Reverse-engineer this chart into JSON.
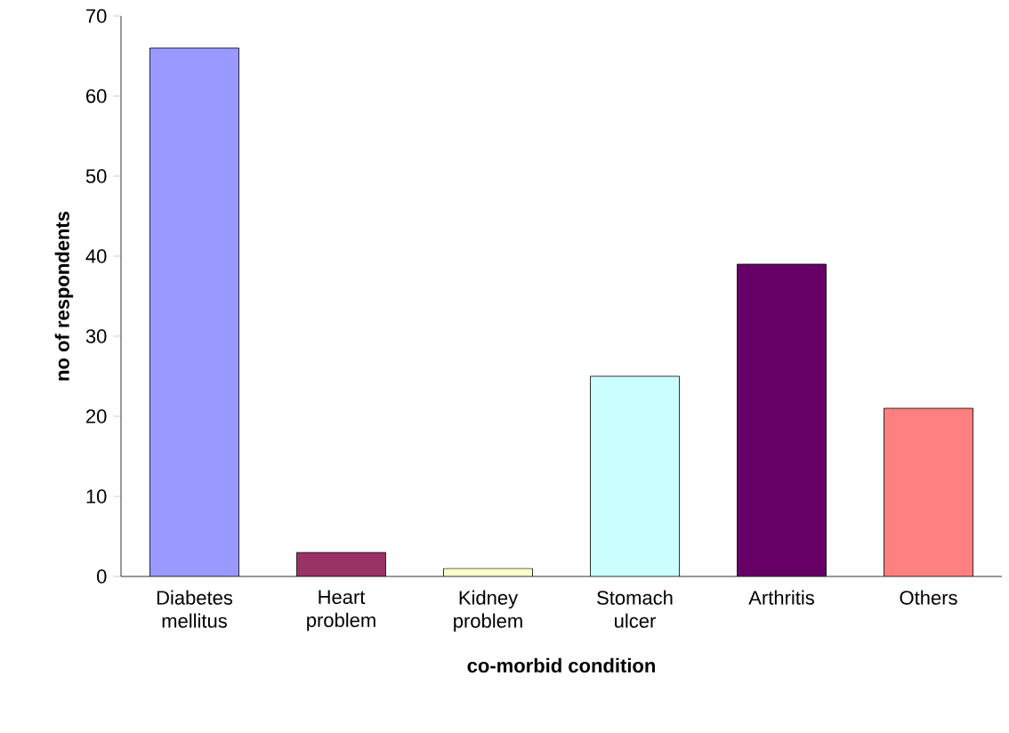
{
  "chart_data": {
    "type": "bar",
    "xlabel": "co-morbid condition",
    "ylabel": "no of respondents",
    "categories": [
      "Diabetes mellitus",
      "Heart problem",
      "Kidney problem",
      "Stomach ulcer",
      "Arthritis",
      "Others"
    ],
    "values": [
      66,
      3,
      1,
      25,
      39,
      21
    ],
    "colors": [
      "#9999ff",
      "#993366",
      "#ffffcc",
      "#ccffff",
      "#660066",
      "#ff8080"
    ],
    "ylim": [
      0,
      70
    ],
    "yticks": [
      0,
      10,
      20,
      30,
      40,
      50,
      60,
      70
    ]
  }
}
